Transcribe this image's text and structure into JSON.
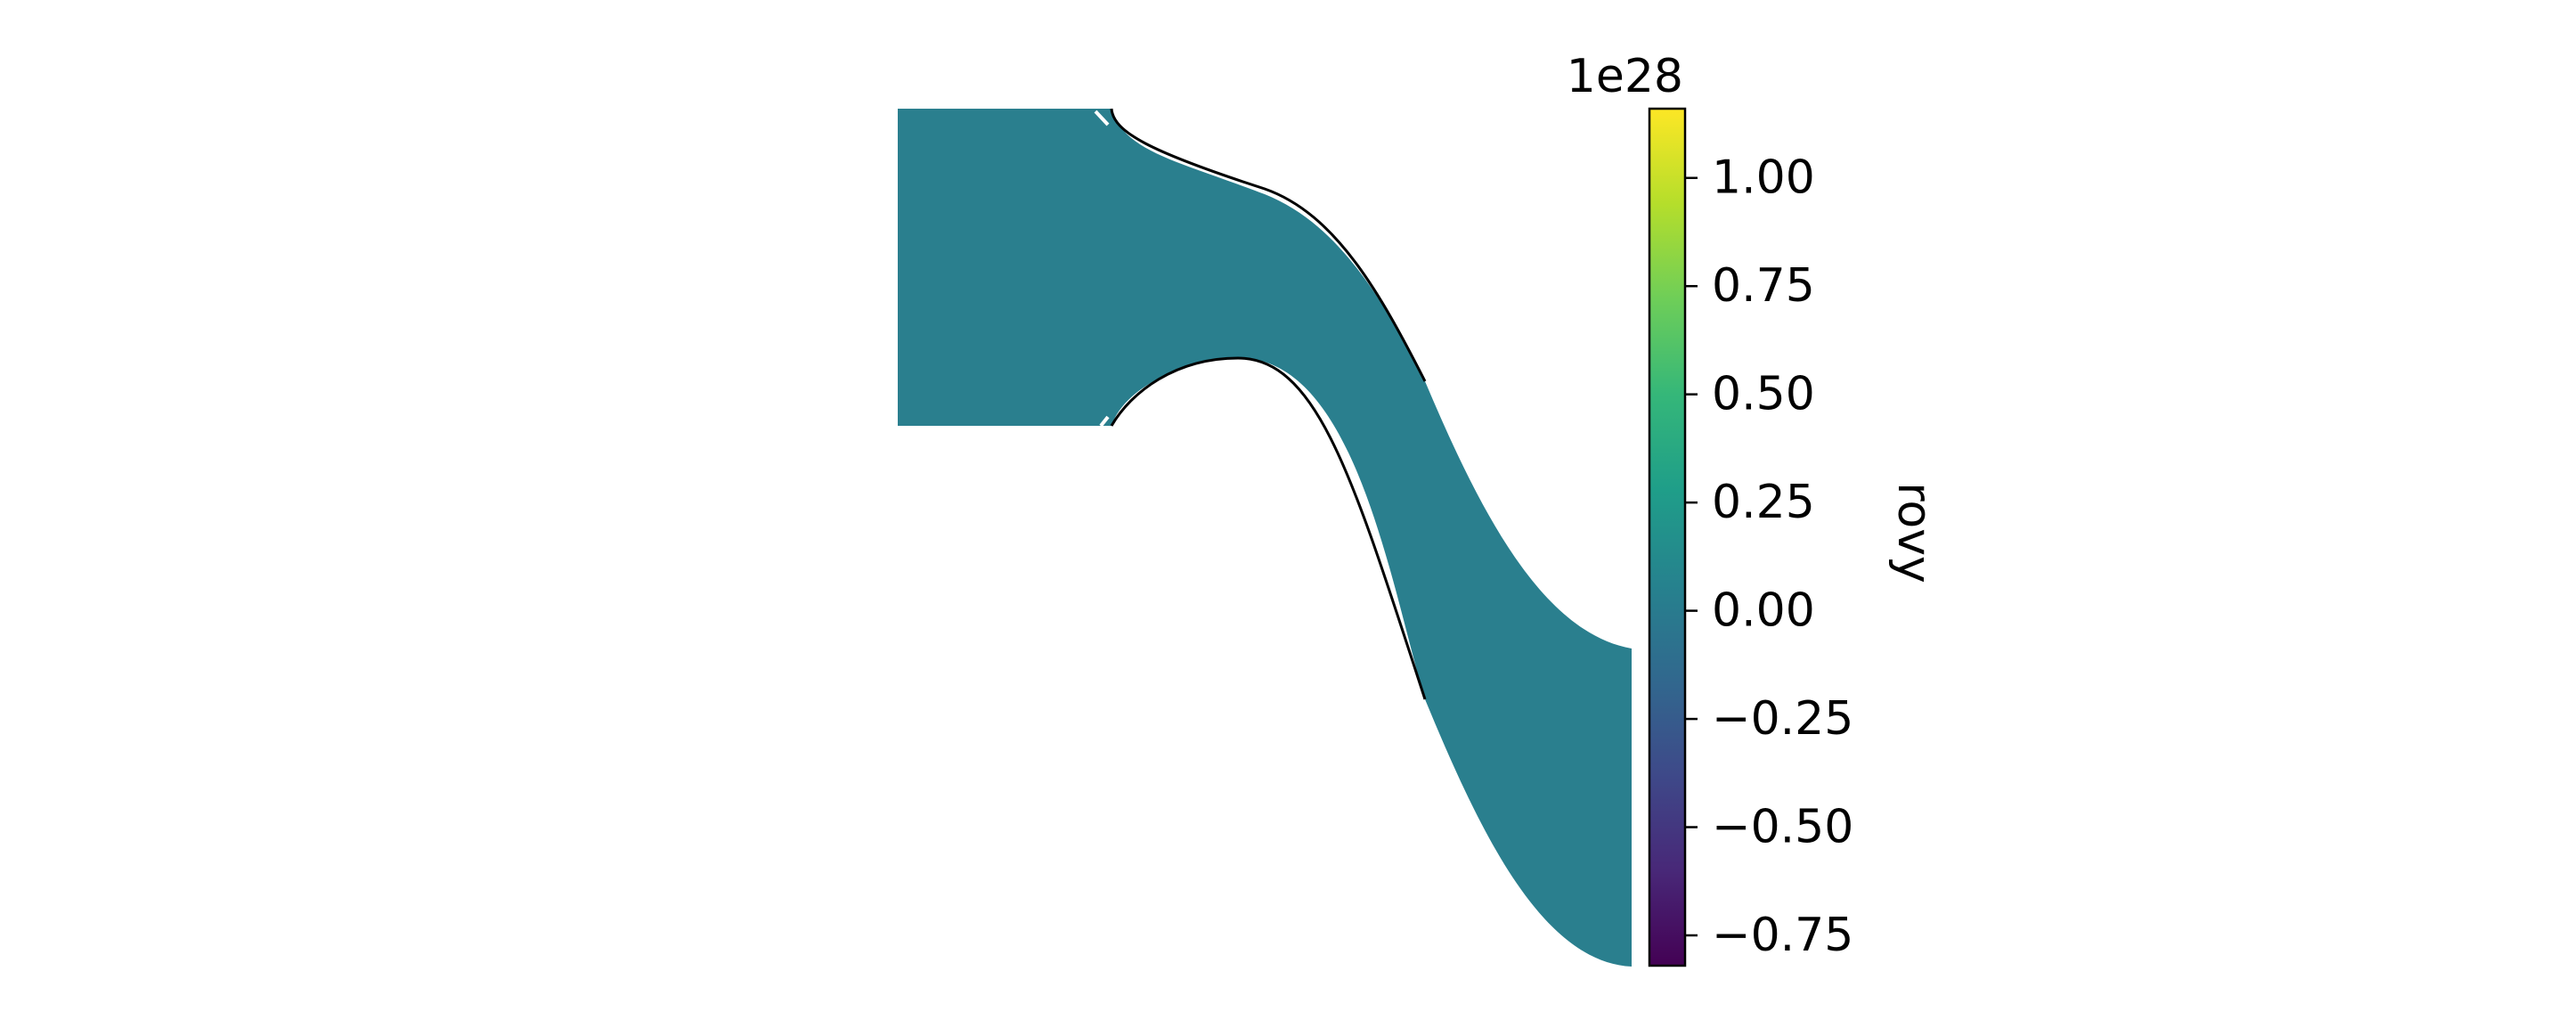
{
  "chart_data": {
    "type": "heatmap",
    "title": "",
    "xlabel": "",
    "ylabel": "",
    "colorbar": {
      "label": "rovy",
      "label_orientation": "rotated-upside-down",
      "offset_text": "1e28",
      "limits": [
        -0.82,
        1.16
      ],
      "ticks": [
        1.0,
        0.75,
        0.5,
        0.25,
        0.0,
        -0.25,
        -0.5,
        -0.75
      ],
      "tick_labels": [
        "1.00",
        "0.75",
        "0.50",
        "0.25",
        "0.00",
        "−0.25",
        "−0.50",
        "−0.75"
      ],
      "colormap": "viridis",
      "colormap_stops": [
        "#440154",
        "#482878",
        "#3e4989",
        "#31688e",
        "#26828e",
        "#1f9e89",
        "#35b779",
        "#6ece58",
        "#b5de2b",
        "#fde725"
      ]
    },
    "field": {
      "uniform_value": 0.0,
      "fill_color": "#2a7f8e",
      "outline_color": "#000000"
    },
    "axes_visible": false,
    "grid": false
  }
}
